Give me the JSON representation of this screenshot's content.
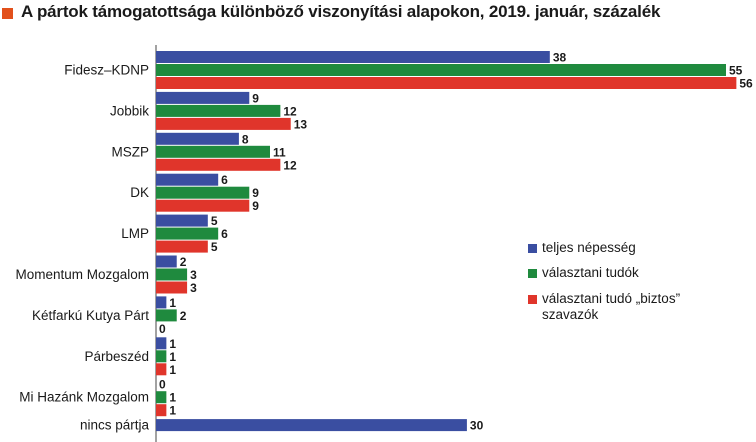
{
  "title": "A pártok támogatottsága különböző viszonyítási alapokon, 2019. január, százalék",
  "chart_data": {
    "type": "bar",
    "orientation": "horizontal",
    "title": "A pártok támogatottsága különböző viszonyítási alapokon, 2019. január, százalék",
    "categories": [
      "Fidesz–KDNP",
      "Jobbik",
      "MSZP",
      "DK",
      "LMP",
      "Momentum  Mozgalom",
      "Kétfarkú Kutya Párt",
      "Párbeszéd",
      "Mi Hazánk Mozgalom",
      "nincs pártja"
    ],
    "series": [
      {
        "name": "teljes népesség",
        "color": "#3a4ea1",
        "values": [
          38,
          9,
          8,
          6,
          5,
          2,
          1,
          1,
          0,
          30
        ]
      },
      {
        "name": "választani tudók",
        "color": "#1f8a3e",
        "values": [
          55,
          12,
          11,
          9,
          6,
          3,
          2,
          1,
          1,
          null
        ]
      },
      {
        "name": "választani tudó „biztos” szavazók",
        "color": "#e0352b",
        "values": [
          56,
          13,
          12,
          9,
          5,
          3,
          0,
          1,
          1,
          null
        ]
      }
    ],
    "xlim": [
      0,
      57
    ],
    "legend_position": "right",
    "grid": false
  }
}
